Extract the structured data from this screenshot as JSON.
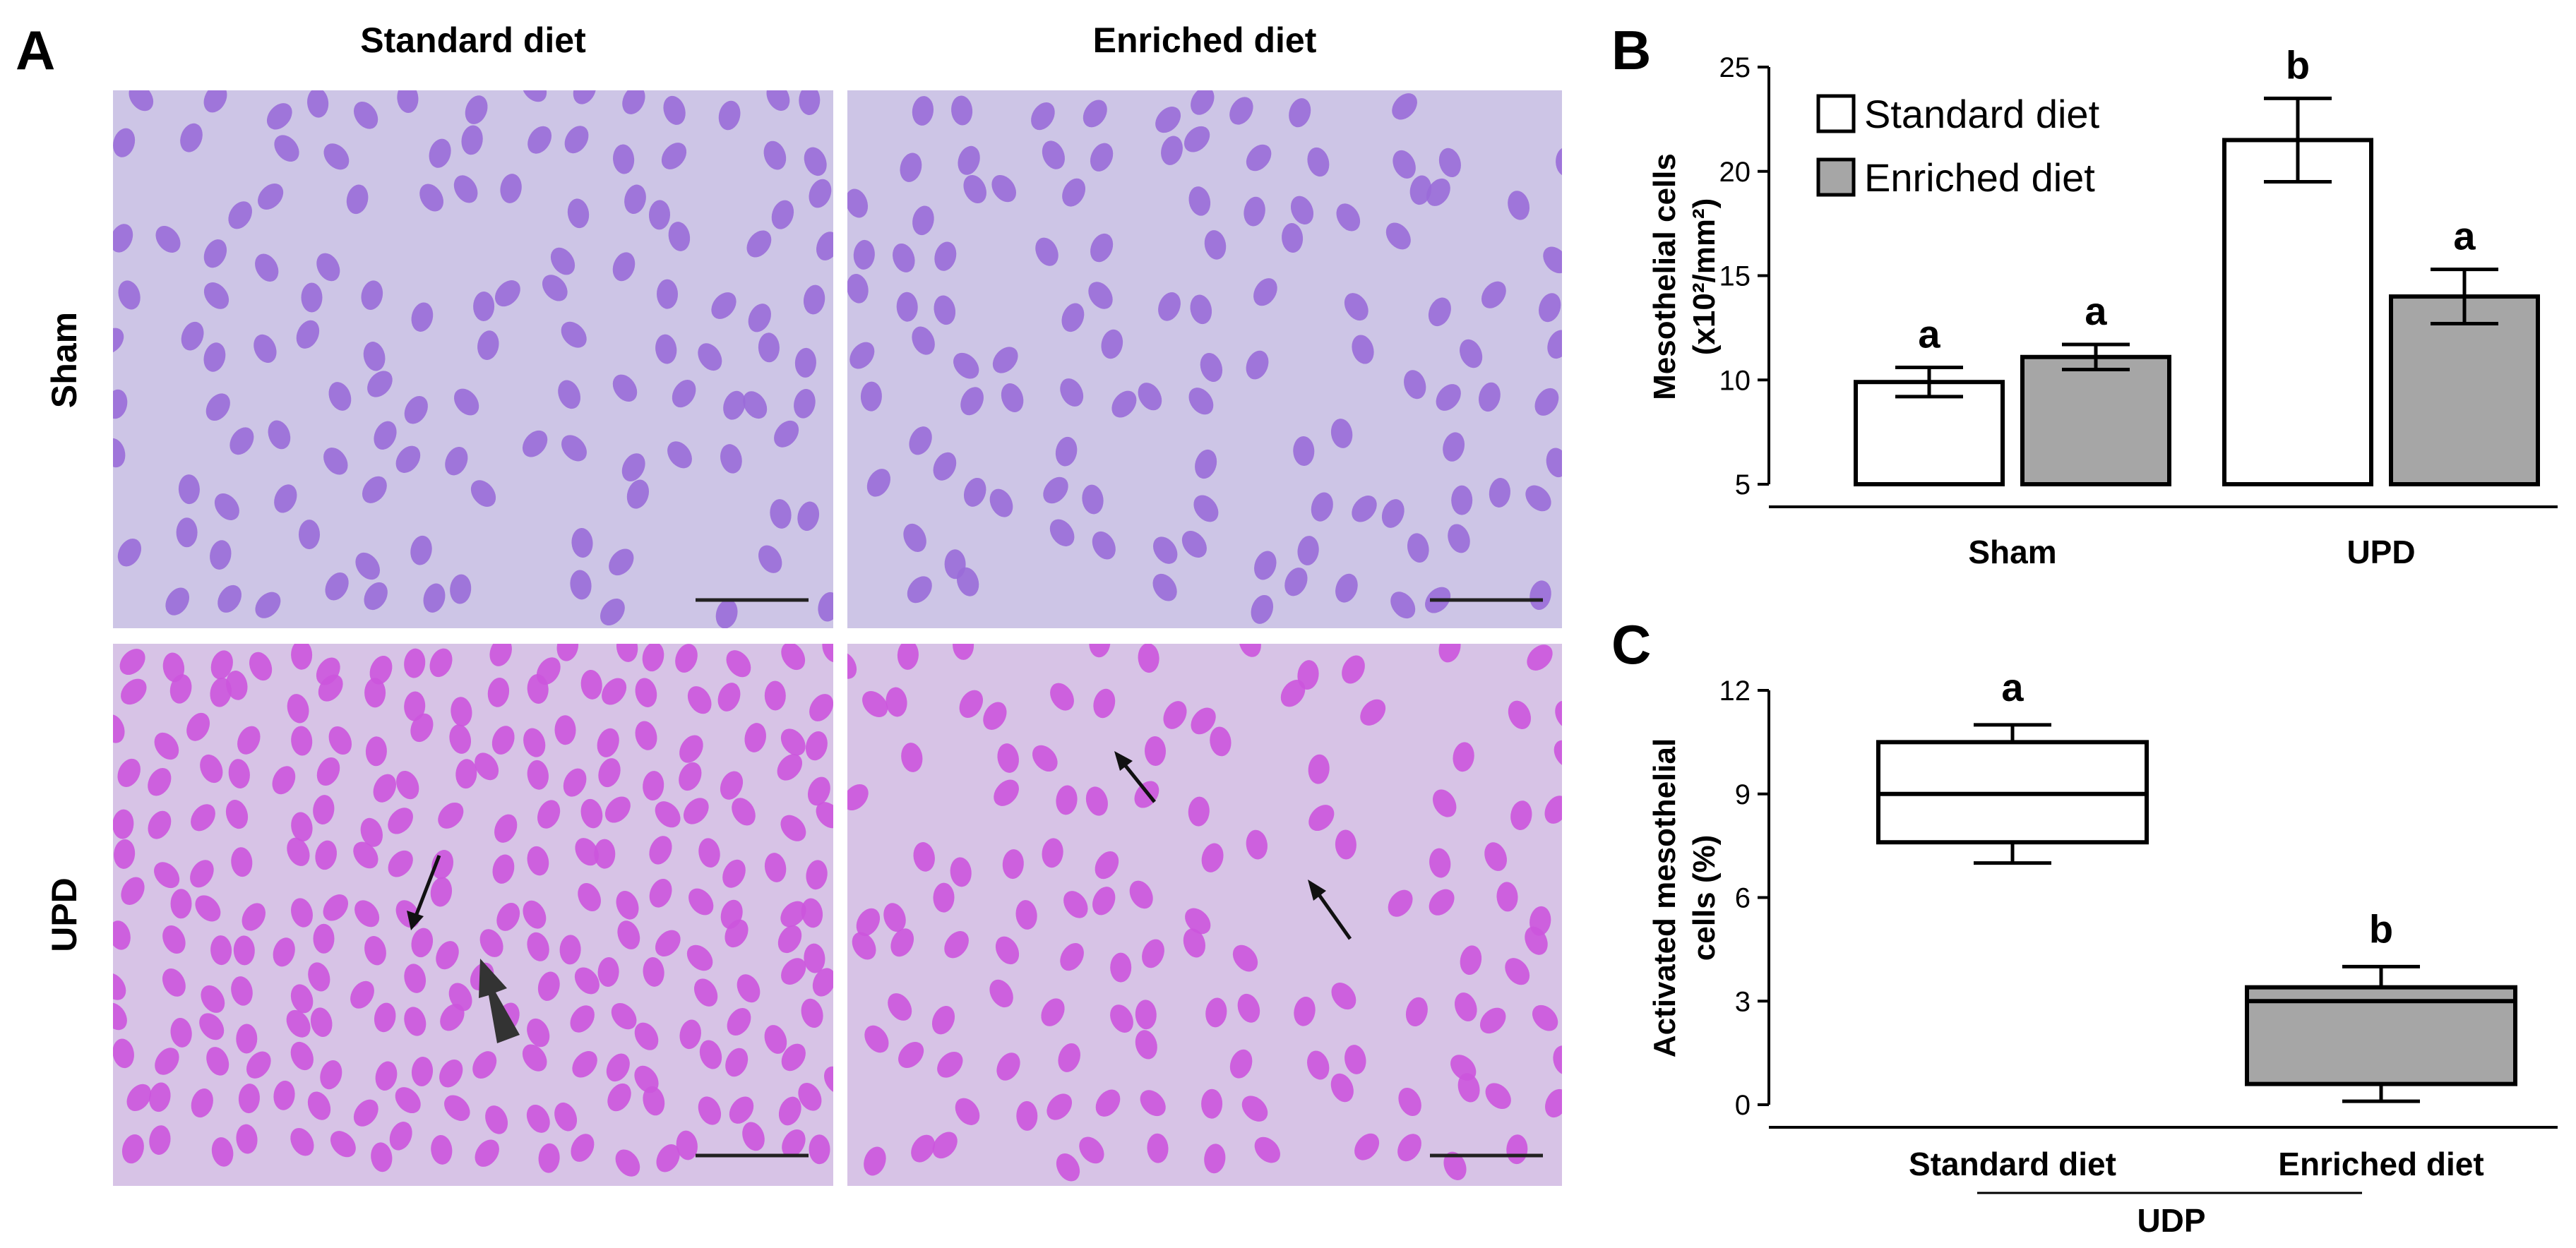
{
  "panels": {
    "a": "A",
    "b": "B",
    "c": "C"
  },
  "micrographs": {
    "col_titles": [
      "Standard diet",
      "Enriched diet"
    ],
    "row_titles": [
      "Sham",
      "UPD"
    ],
    "colors": {
      "sham_bg": "#cdc5e6",
      "upd_bg": "#d7c3e6",
      "sham_nucleus": "#9a6bd8",
      "upd_nucleus": "#cc55dd"
    }
  },
  "chart_data": [
    {
      "type": "bar",
      "panel": "B",
      "ylabel": "Mesothelial cells",
      "ylabel_unit": "(x10²/mm²)",
      "ylim": [
        5,
        25
      ],
      "yticks": [
        "5",
        "10",
        "15",
        "20",
        "25"
      ],
      "categories": [
        "Sham",
        "UPD"
      ],
      "series": [
        {
          "name": "Standard diet",
          "color": "#ffffff",
          "values": [
            9.9,
            21.5
          ],
          "errors": [
            0.7,
            2.0
          ],
          "letters": [
            "a",
            "b"
          ]
        },
        {
          "name": "Enriched diet",
          "color": "#a6a6a6",
          "values": [
            11.1,
            14.0
          ],
          "errors": [
            0.6,
            1.3
          ],
          "letters": [
            "a",
            "a"
          ]
        }
      ],
      "legend": "top-left"
    },
    {
      "type": "box",
      "panel": "C",
      "ylabel": "Activated mesothelial",
      "ylabel_unit": "cells (%)",
      "ylim": [
        0,
        12
      ],
      "yticks": [
        "0",
        "3",
        "6",
        "9",
        "12"
      ],
      "categories": [
        "Standard diet",
        "Enriched diet"
      ],
      "group_label": "UDP",
      "boxes": [
        {
          "min": 7.0,
          "q1": 7.6,
          "median": 9.0,
          "q3": 10.5,
          "max": 11.0,
          "color": "#ffffff",
          "letter": "a"
        },
        {
          "min": 0.1,
          "q1": 0.6,
          "median": 3.0,
          "q3": 3.4,
          "max": 4.0,
          "color": "#a6a6a6",
          "letter": "b"
        }
      ]
    }
  ]
}
